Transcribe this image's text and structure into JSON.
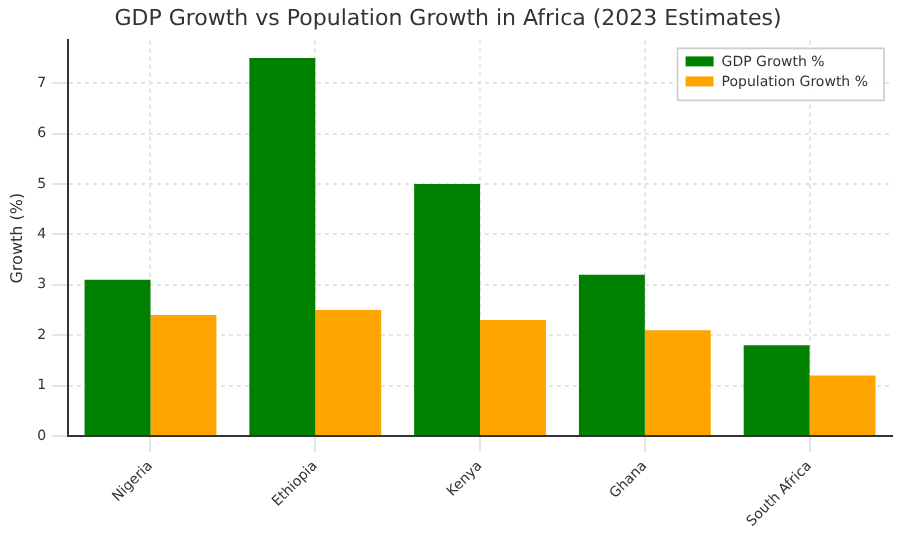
{
  "chart_data": {
    "type": "bar",
    "title": "GDP Growth vs Population Growth in Africa (2023 Estimates)",
    "ylabel": "Growth (%)",
    "categories": [
      "Nigeria",
      "Ethiopia",
      "Kenya",
      "Ghana",
      "South Africa"
    ],
    "series": [
      {
        "name": "GDP Growth %",
        "color": "#008000",
        "values": [
          3.1,
          7.5,
          5.0,
          3.2,
          1.8
        ]
      },
      {
        "name": "Population Growth %",
        "color": "#ffa500",
        "values": [
          2.4,
          2.5,
          2.3,
          2.1,
          1.2
        ]
      }
    ],
    "ylim": [
      0,
      7.85
    ],
    "yticks": [
      0,
      1,
      2,
      3,
      4,
      5,
      6,
      7
    ],
    "grid": true,
    "legend": "top right"
  }
}
